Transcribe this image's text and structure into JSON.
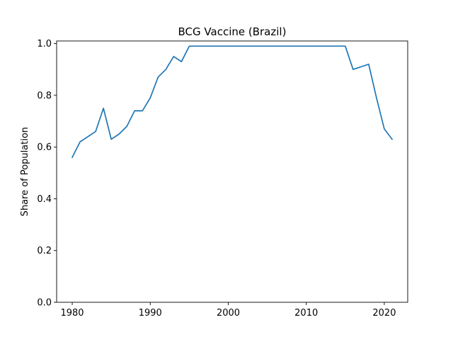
{
  "chart_data": {
    "type": "line",
    "title": "BCG Vaccine (Brazil)",
    "xlabel": "",
    "ylabel": "Share of Population",
    "xlim": [
      1978,
      2023
    ],
    "ylim": [
      0,
      1.01
    ],
    "xticks": [
      1980,
      1990,
      2000,
      2010,
      2020
    ],
    "yticks": [
      0.0,
      0.2,
      0.4,
      0.6,
      0.8,
      1.0
    ],
    "xtick_labels": [
      "1980",
      "1990",
      "2000",
      "2010",
      "2020"
    ],
    "ytick_labels": [
      "0.0",
      "0.2",
      "0.4",
      "0.6",
      "0.8",
      "1.0"
    ],
    "grid": false,
    "color": "#1f77b4",
    "series": [
      {
        "x": [
          1980,
          1981,
          1982,
          1983,
          1984,
          1985,
          1986,
          1987,
          1988,
          1989,
          1990,
          1991,
          1992,
          1993,
          1994,
          1995,
          1996,
          1997,
          1998,
          1999,
          2000,
          2001,
          2002,
          2003,
          2004,
          2005,
          2006,
          2007,
          2008,
          2009,
          2010,
          2011,
          2012,
          2013,
          2014,
          2015,
          2016,
          2017,
          2018,
          2019,
          2020,
          2021
        ],
        "y": [
          0.56,
          0.62,
          0.64,
          0.66,
          0.75,
          0.63,
          0.65,
          0.68,
          0.74,
          0.74,
          0.79,
          0.87,
          0.9,
          0.95,
          0.93,
          0.99,
          0.99,
          0.99,
          0.99,
          0.99,
          0.99,
          0.99,
          0.99,
          0.99,
          0.99,
          0.99,
          0.99,
          0.99,
          0.99,
          0.99,
          0.99,
          0.99,
          0.99,
          0.99,
          0.99,
          0.99,
          0.9,
          0.91,
          0.92,
          0.79,
          0.67,
          0.63
        ]
      }
    ]
  }
}
